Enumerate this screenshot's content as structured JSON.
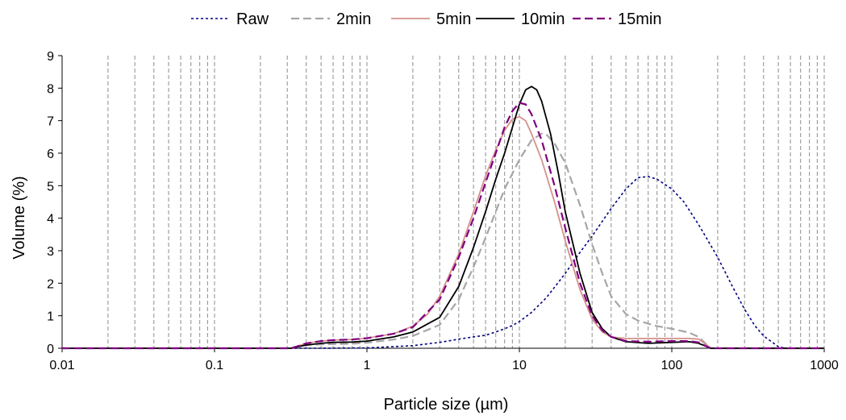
{
  "chart_data": {
    "type": "line",
    "title": "",
    "xlabel": "Particle size (µm)",
    "ylabel": "Volume (%)",
    "x_scale": "log",
    "xlim": [
      0.01,
      1000
    ],
    "ylim": [
      0,
      9
    ],
    "x_tick_labels": [
      "0.01",
      "0.1",
      "1",
      "10",
      "100",
      "1000"
    ],
    "y_tick_labels": [
      "0",
      "1",
      "2",
      "3",
      "4",
      "5",
      "6",
      "7",
      "8",
      "9"
    ],
    "grid": "vertical dashed at log minor steps",
    "legend_position": "top",
    "series": [
      {
        "name": "Raw",
        "color": "#000080",
        "dash": "dotted",
        "points": [
          [
            0.01,
            0
          ],
          [
            0.5,
            0
          ],
          [
            1,
            0.01
          ],
          [
            2,
            0.08
          ],
          [
            3,
            0.18
          ],
          [
            4,
            0.28
          ],
          [
            5,
            0.35
          ],
          [
            6,
            0.4
          ],
          [
            7,
            0.5
          ],
          [
            8,
            0.6
          ],
          [
            9,
            0.7
          ],
          [
            10,
            0.82
          ],
          [
            12,
            1.1
          ],
          [
            15,
            1.55
          ],
          [
            20,
            2.3
          ],
          [
            25,
            2.95
          ],
          [
            30,
            3.45
          ],
          [
            40,
            4.3
          ],
          [
            50,
            4.9
          ],
          [
            60,
            5.25
          ],
          [
            70,
            5.28
          ],
          [
            80,
            5.2
          ],
          [
            100,
            4.9
          ],
          [
            120,
            4.5
          ],
          [
            150,
            3.8
          ],
          [
            200,
            2.8
          ],
          [
            250,
            1.9
          ],
          [
            300,
            1.2
          ],
          [
            350,
            0.7
          ],
          [
            400,
            0.38
          ],
          [
            500,
            0.05
          ],
          [
            560,
            0
          ],
          [
            1000,
            0
          ]
        ]
      },
      {
        "name": "2min",
        "color": "#a6a6a6",
        "dash": "long-dash",
        "points": [
          [
            0.01,
            0
          ],
          [
            0.3,
            0
          ],
          [
            0.35,
            0.05
          ],
          [
            0.4,
            0.1
          ],
          [
            0.5,
            0.12
          ],
          [
            0.6,
            0.13
          ],
          [
            0.8,
            0.14
          ],
          [
            1,
            0.17
          ],
          [
            1.5,
            0.27
          ],
          [
            2,
            0.38
          ],
          [
            3,
            0.72
          ],
          [
            4,
            1.5
          ],
          [
            5,
            2.5
          ],
          [
            6,
            3.4
          ],
          [
            7,
            4.2
          ],
          [
            8,
            4.9
          ],
          [
            10,
            5.8
          ],
          [
            12,
            6.4
          ],
          [
            14,
            6.6
          ],
          [
            15,
            6.58
          ],
          [
            17,
            6.3
          ],
          [
            20,
            5.7
          ],
          [
            25,
            4.4
          ],
          [
            30,
            3.2
          ],
          [
            35,
            2.3
          ],
          [
            40,
            1.6
          ],
          [
            50,
            1.05
          ],
          [
            60,
            0.85
          ],
          [
            80,
            0.68
          ],
          [
            100,
            0.6
          ],
          [
            130,
            0.48
          ],
          [
            150,
            0.35
          ],
          [
            170,
            0.1
          ],
          [
            180,
            0
          ],
          [
            1000,
            0
          ]
        ]
      },
      {
        "name": "5min",
        "color": "#d4918c",
        "dash": "solid",
        "points": [
          [
            0.01,
            0
          ],
          [
            0.32,
            0
          ],
          [
            0.37,
            0.1
          ],
          [
            0.4,
            0.15
          ],
          [
            0.5,
            0.22
          ],
          [
            0.6,
            0.25
          ],
          [
            0.8,
            0.27
          ],
          [
            1,
            0.31
          ],
          [
            1.5,
            0.45
          ],
          [
            2,
            0.68
          ],
          [
            2.5,
            1.05
          ],
          [
            3,
            1.6
          ],
          [
            4,
            2.9
          ],
          [
            5,
            4.2
          ],
          [
            6,
            5.3
          ],
          [
            7,
            6.1
          ],
          [
            8,
            6.7
          ],
          [
            9,
            7.05
          ],
          [
            10,
            7.12
          ],
          [
            11,
            7.0
          ],
          [
            12,
            6.6
          ],
          [
            14,
            5.8
          ],
          [
            17,
            4.5
          ],
          [
            20,
            3.3
          ],
          [
            25,
            1.8
          ],
          [
            30,
            0.9
          ],
          [
            35,
            0.5
          ],
          [
            40,
            0.35
          ],
          [
            50,
            0.3
          ],
          [
            70,
            0.3
          ],
          [
            100,
            0.3
          ],
          [
            130,
            0.3
          ],
          [
            150,
            0.28
          ],
          [
            170,
            0.1
          ],
          [
            180,
            0
          ],
          [
            1000,
            0
          ]
        ]
      },
      {
        "name": "10min",
        "color": "#000000",
        "dash": "solid",
        "points": [
          [
            0.01,
            0
          ],
          [
            0.32,
            0
          ],
          [
            0.37,
            0.07
          ],
          [
            0.4,
            0.1
          ],
          [
            0.5,
            0.15
          ],
          [
            0.6,
            0.18
          ],
          [
            0.8,
            0.19
          ],
          [
            1,
            0.22
          ],
          [
            1.5,
            0.35
          ],
          [
            2,
            0.5
          ],
          [
            3,
            0.95
          ],
          [
            4,
            1.9
          ],
          [
            5,
            3.1
          ],
          [
            6,
            4.2
          ],
          [
            7,
            5.2
          ],
          [
            8,
            6.0
          ],
          [
            9,
            6.8
          ],
          [
            10,
            7.5
          ],
          [
            11,
            7.95
          ],
          [
            12,
            8.05
          ],
          [
            13,
            7.95
          ],
          [
            14,
            7.6
          ],
          [
            16,
            6.6
          ],
          [
            18,
            5.4
          ],
          [
            20,
            4.2
          ],
          [
            25,
            2.3
          ],
          [
            30,
            1.1
          ],
          [
            35,
            0.6
          ],
          [
            40,
            0.35
          ],
          [
            50,
            0.2
          ],
          [
            70,
            0.15
          ],
          [
            100,
            0.18
          ],
          [
            130,
            0.2
          ],
          [
            150,
            0.15
          ],
          [
            170,
            0.05
          ],
          [
            180,
            0
          ],
          [
            1000,
            0
          ]
        ]
      },
      {
        "name": "15min",
        "color": "#800080",
        "dash": "long-dash",
        "points": [
          [
            0.01,
            0
          ],
          [
            0.32,
            0
          ],
          [
            0.37,
            0.1
          ],
          [
            0.4,
            0.15
          ],
          [
            0.5,
            0.22
          ],
          [
            0.6,
            0.25
          ],
          [
            0.8,
            0.27
          ],
          [
            1,
            0.31
          ],
          [
            1.5,
            0.45
          ],
          [
            2,
            0.65
          ],
          [
            3,
            1.5
          ],
          [
            4,
            2.8
          ],
          [
            5,
            4.0
          ],
          [
            6,
            5.1
          ],
          [
            7,
            6.0
          ],
          [
            8,
            6.8
          ],
          [
            9,
            7.3
          ],
          [
            10,
            7.55
          ],
          [
            11,
            7.5
          ],
          [
            12,
            7.2
          ],
          [
            14,
            6.4
          ],
          [
            17,
            5.0
          ],
          [
            20,
            3.7
          ],
          [
            25,
            2.0
          ],
          [
            30,
            1.0
          ],
          [
            35,
            0.55
          ],
          [
            40,
            0.35
          ],
          [
            50,
            0.22
          ],
          [
            70,
            0.2
          ],
          [
            100,
            0.22
          ],
          [
            130,
            0.22
          ],
          [
            150,
            0.18
          ],
          [
            170,
            0.05
          ],
          [
            180,
            0
          ],
          [
            1000,
            0
          ]
        ]
      }
    ]
  }
}
